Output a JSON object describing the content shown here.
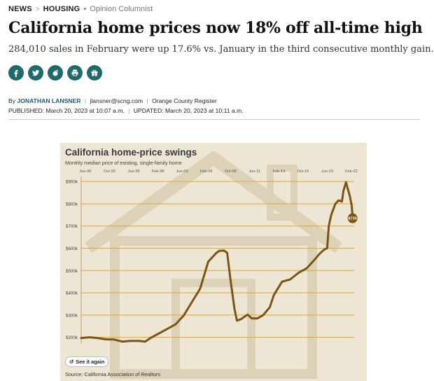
{
  "breadcrumb": {
    "section": "NEWS",
    "subsection": "HOUSING",
    "tag": "Opinion Columnist"
  },
  "headline": "California home prices now 18% off all-time high",
  "subheadline": "284,010 sales in February were up 17.6% vs. January in the third consecutive monthly gain.",
  "share_buttons": [
    {
      "name": "facebook-icon"
    },
    {
      "name": "twitter-icon"
    },
    {
      "name": "reddit-icon"
    },
    {
      "name": "print-icon"
    },
    {
      "name": "gift-icon"
    }
  ],
  "byline": {
    "prefix": "By",
    "author": "JONATHAN LANSNER",
    "email": "jlansner@scng.com",
    "publication": "Orange County Register"
  },
  "dates": {
    "published": "PUBLISHED: March 20, 2023 at 10:07 a.m.",
    "updated": "UPDATED: March 20, 2023 at 10:11 a.m."
  },
  "colors": {
    "accent_teal": "#1d6b6b",
    "line": "#7a5514",
    "gridline": "#e3a72f",
    "card_bg": "#ede6d4"
  },
  "chart_data": {
    "type": "line",
    "title": "California home-price swings",
    "subtitle": "Monthly median price of existing, single-family home",
    "x_tick_labels": [
      "Jun-90",
      "Oct-92",
      "Jun-95",
      "Feb-98",
      "Jun-03",
      "Feb-06",
      "Oct-08",
      "Jun-11",
      "Feb-14",
      "Oct-16",
      "Jun-19",
      "Feb-22"
    ],
    "y_tick_labels": [
      "$200k",
      "$300k",
      "$400k",
      "$500k",
      "$600k",
      "$700k",
      "$800k",
      "$900k"
    ],
    "ylim": [
      180,
      910
    ],
    "y_unit": "thousand dollars",
    "grid": true,
    "end_label": "$735",
    "series": [
      {
        "values": [
          [
            1990.0,
            197
          ],
          [
            1991.0,
            200
          ],
          [
            1992.0,
            197
          ],
          [
            1993.0,
            191
          ],
          [
            1994.0,
            190
          ],
          [
            1995.0,
            181
          ],
          [
            1996.0,
            184
          ],
          [
            1997.0,
            184
          ],
          [
            1997.8,
            181
          ],
          [
            1998.5,
            198
          ],
          [
            1999.5,
            218
          ],
          [
            2000.5,
            238
          ],
          [
            2001.5,
            258
          ],
          [
            2002.5,
            298
          ],
          [
            2003.5,
            358
          ],
          [
            2004.5,
            418
          ],
          [
            2005.5,
            540
          ],
          [
            2006.4,
            576
          ],
          [
            2006.8,
            588
          ],
          [
            2007.4,
            590
          ],
          [
            2007.8,
            580
          ],
          [
            2008.2,
            460
          ],
          [
            2008.7,
            328
          ],
          [
            2009.0,
            275
          ],
          [
            2009.5,
            282
          ],
          [
            2010.3,
            302
          ],
          [
            2010.8,
            285
          ],
          [
            2011.5,
            285
          ],
          [
            2012.2,
            300
          ],
          [
            2013.0,
            335
          ],
          [
            2013.5,
            390
          ],
          [
            2014.0,
            420
          ],
          [
            2014.5,
            450
          ],
          [
            2015.5,
            460
          ],
          [
            2016.5,
            490
          ],
          [
            2017.5,
            510
          ],
          [
            2018.5,
            550
          ],
          [
            2019.0,
            572
          ],
          [
            2019.5,
            590
          ],
          [
            2019.8,
            598
          ],
          [
            2020.0,
            600
          ],
          [
            2020.2,
            700
          ],
          [
            2020.5,
            750
          ],
          [
            2021.0,
            800
          ],
          [
            2021.4,
            815
          ],
          [
            2021.8,
            810
          ],
          [
            2022.0,
            860
          ],
          [
            2022.3,
            897
          ],
          [
            2022.5,
            870
          ],
          [
            2022.8,
            830
          ],
          [
            2023.0,
            790
          ],
          [
            2023.1,
            735
          ]
        ]
      }
    ],
    "buttons": {
      "replay": "See it again"
    },
    "source": "Source: California Association of Realtors"
  }
}
